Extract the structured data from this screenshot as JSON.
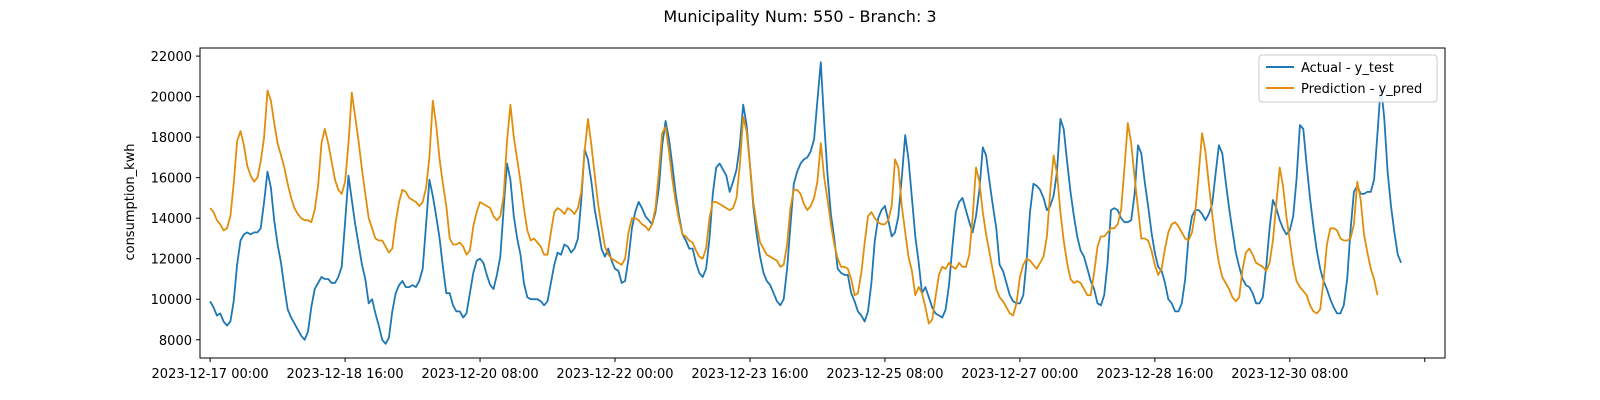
{
  "chart_data": {
    "type": "line",
    "title": "Municipality Num: 550 - Branch: 3",
    "xlabel": "",
    "ylabel": "consumption_kwh",
    "ylim": [
      7100,
      22400
    ],
    "xlim": [
      "2023-12-16 21:00",
      "2024-01-01 06:00"
    ],
    "x_tick_labels": [
      "2023-12-17 00:00",
      "2023-12-18 16:00",
      "2023-12-20 08:00",
      "2023-12-22 00:00",
      "2023-12-23 16:00",
      "2023-12-25 08:00",
      "2023-12-27 00:00",
      "2023-12-28 16:00",
      "2023-12-30 08:00",
      ""
    ],
    "y_tick_labels": [
      "8000",
      "10000",
      "12000",
      "14000",
      "16000",
      "18000",
      "20000",
      "22000"
    ],
    "x_start": "2023-12-17 00:00",
    "x_step": "1 hour",
    "legend_position": "top-right",
    "grid": false,
    "series": [
      {
        "name": "Actual - y_test",
        "color": "#1f77b4",
        "values": [
          9900,
          9600,
          9200,
          9300,
          8900,
          8700,
          8900,
          9900,
          11700,
          12900,
          13200,
          13300,
          13200,
          13300,
          13300,
          13500,
          14800,
          16300,
          15500,
          13900,
          12700,
          11800,
          10600,
          9500,
          9100,
          8800,
          8500,
          8200,
          8000,
          8400,
          9600,
          10500,
          10800,
          11100,
          11000,
          11000,
          10800,
          10800,
          11100,
          11600,
          13800,
          16100,
          14900,
          13700,
          12700,
          11700,
          11000,
          9800,
          10000,
          9300,
          8700,
          8000,
          7800,
          8100,
          9400,
          10300,
          10700,
          10900,
          10600,
          10600,
          10700,
          10600,
          10900,
          11500,
          13700,
          15900,
          15100,
          14100,
          13000,
          11600,
          10300,
          10300,
          9700,
          9400,
          9400,
          9100,
          9300,
          10300,
          11300,
          11900,
          12000,
          11800,
          11200,
          10700,
          10500,
          11200,
          12100,
          14500,
          16700,
          15900,
          14100,
          13000,
          12200,
          10800,
          10100,
          10000,
          10000,
          10000,
          9900,
          9700,
          9900,
          10800,
          11700,
          12300,
          12200,
          12700,
          12600,
          12300,
          12500,
          13000,
          14900,
          17400,
          16900,
          15800,
          14400,
          13500,
          12500,
          12100,
          12500,
          11900,
          11500,
          11400,
          10800,
          10900,
          12000,
          13500,
          14300,
          14800,
          14500,
          14100,
          13900,
          13700,
          14300,
          15500,
          17600,
          18800,
          17900,
          16600,
          15200,
          14100,
          13200,
          12900,
          12500,
          12500,
          11800,
          11300,
          11100,
          11500,
          13000,
          15200,
          16500,
          16700,
          16400,
          16100,
          15300,
          15800,
          16400,
          17600,
          19600,
          18600,
          16600,
          14600,
          13200,
          12100,
          11300,
          10900,
          10700,
          10300,
          9900,
          9700,
          10000,
          11500,
          13600,
          15700,
          16300,
          16700,
          16900,
          17000,
          17300,
          17900,
          19800,
          21700,
          18700,
          16100,
          14200,
          13000,
          11500,
          11300,
          11200,
          11200,
          10300,
          9900,
          9400,
          9200,
          8900,
          9400,
          10800,
          12900,
          14000,
          14400,
          14600,
          13900,
          13100,
          13300,
          14100,
          16000,
          18100,
          16900,
          15000,
          13100,
          11800,
          10300,
          10600,
          10100,
          9600,
          9300,
          9200,
          9100,
          9500,
          10700,
          12600,
          14300,
          14800,
          15000,
          14400,
          13800,
          13300,
          14100,
          15400,
          17500,
          17100,
          15800,
          14600,
          13500,
          11700,
          11400,
          10800,
          10200,
          9900,
          9800,
          9800,
          10200,
          11900,
          14300,
          15700,
          15600,
          15400,
          15000,
          14400,
          14600,
          15100,
          16300,
          18900,
          18400,
          16800,
          15300,
          14100,
          13100,
          12400,
          12100,
          11500,
          10900,
          10500,
          9800,
          9700,
          10200,
          11800,
          14400,
          14500,
          14400,
          14000,
          13800,
          13800,
          13900,
          15200,
          17600,
          17200,
          15800,
          14600,
          13300,
          12300,
          11600,
          11400,
          10800,
          10000,
          9800,
          9400,
          9400,
          9800,
          11000,
          13100,
          14100,
          14400,
          14400,
          14200,
          13900,
          14200,
          14700,
          16200,
          17600,
          17200,
          15800,
          14500,
          13400,
          12300,
          11600,
          11000,
          10700,
          10600,
          10300,
          9800,
          9800,
          10100,
          11600,
          13500,
          14900,
          14500,
          13900,
          13500,
          13200,
          13400,
          14100,
          15900,
          18600,
          18400,
          16600,
          15000,
          13600,
          12400,
          11500,
          10900,
          10500,
          10000,
          9600,
          9300,
          9300,
          9700,
          11000,
          13400,
          15300,
          15600,
          15200,
          15200,
          15300,
          15300,
          15900,
          18200,
          20600,
          18900,
          16300,
          14600,
          13300,
          12200,
          11800
        ]
      },
      {
        "name": "Prediction - y_pred",
        "color": "#e08e0b",
        "values": [
          14500,
          14300,
          13900,
          13700,
          13400,
          13500,
          14100,
          15700,
          17800,
          18300,
          17600,
          16600,
          16100,
          15800,
          16000,
          16800,
          18000,
          20300,
          19800,
          18700,
          17700,
          17100,
          16500,
          15700,
          15000,
          14500,
          14200,
          14000,
          13900,
          13900,
          13800,
          14400,
          15600,
          17700,
          18400,
          17700,
          16800,
          15900,
          15400,
          15200,
          15800,
          17700,
          20200,
          19000,
          17800,
          16400,
          15200,
          14000,
          13500,
          13000,
          12900,
          12900,
          12600,
          12300,
          12500,
          13800,
          14800,
          15400,
          15300,
          15000,
          14900,
          14800,
          14600,
          14800,
          15500,
          17000,
          19800,
          18600,
          16900,
          15700,
          14600,
          13000,
          12700,
          12700,
          12800,
          12600,
          12200,
          12400,
          13600,
          14300,
          14800,
          14700,
          14600,
          14500,
          14100,
          13900,
          14100,
          15100,
          17800,
          19600,
          18000,
          16900,
          15800,
          14500,
          13400,
          12900,
          13000,
          12800,
          12600,
          12200,
          12200,
          13300,
          14300,
          14500,
          14400,
          14200,
          14500,
          14400,
          14200,
          14500,
          15300,
          17300,
          18900,
          17600,
          16100,
          14700,
          13600,
          12600,
          12200,
          12000,
          11900,
          11800,
          11700,
          12000,
          13300,
          14000,
          14000,
          13900,
          13700,
          13600,
          13400,
          13700,
          14500,
          16300,
          18200,
          18500,
          17300,
          15900,
          14800,
          13900,
          13200,
          13100,
          12900,
          12800,
          12400,
          12100,
          12000,
          12500,
          14000,
          14800,
          14800,
          14700,
          14600,
          14500,
          14400,
          14500,
          15000,
          16600,
          19000,
          18300,
          16600,
          14800,
          13700,
          12800,
          12500,
          12200,
          12100,
          12000,
          11900,
          11600,
          11700,
          12700,
          14500,
          15400,
          15400,
          15200,
          14700,
          14400,
          14600,
          15000,
          15800,
          17700,
          16000,
          14900,
          13700,
          12700,
          12000,
          11600,
          11600,
          11500,
          11000,
          10200,
          10300,
          11300,
          12800,
          14100,
          14300,
          14000,
          13800,
          13700,
          13700,
          13900,
          14600,
          16900,
          16500,
          14600,
          13300,
          12100,
          11400,
          10200,
          10600,
          10300,
          9600,
          8800,
          9000,
          10100,
          11200,
          11600,
          11500,
          11800,
          11600,
          11500,
          11800,
          11600,
          11600,
          12200,
          14000,
          16500,
          15800,
          14300,
          13200,
          12300,
          11400,
          10500,
          10100,
          9900,
          9600,
          9300,
          9200,
          9800,
          11100,
          11700,
          12000,
          11900,
          11700,
          11500,
          11800,
          12100,
          13100,
          15300,
          17100,
          16200,
          14300,
          12900,
          11800,
          11000,
          10800,
          10900,
          10800,
          10500,
          10200,
          10200,
          11300,
          12600,
          13100,
          13100,
          13300,
          13500,
          13500,
          13700,
          14400,
          16500,
          18700,
          17700,
          16000,
          14500,
          13000,
          13000,
          12900,
          12400,
          11700,
          11200,
          11500,
          12500,
          13300,
          13700,
          13800,
          13600,
          13300,
          13000,
          12900,
          13300,
          14300,
          16200,
          18200,
          17300,
          15700,
          14200,
          12800,
          11800,
          11100,
          10800,
          10500,
          10100,
          9900,
          10100,
          11500,
          12300,
          12500,
          12200,
          11800,
          11700,
          11600,
          11400,
          11800,
          12900,
          14700,
          16500,
          15600,
          14100,
          12900,
          11700,
          10900,
          10600,
          10400,
          10200,
          9700,
          9400,
          9300,
          9500,
          10900,
          12700,
          13500,
          13500,
          13400,
          13000,
          12900,
          12900,
          13000,
          13700,
          15800,
          14900,
          13200,
          12300,
          11500,
          11000,
          10200
        ]
      }
    ]
  }
}
